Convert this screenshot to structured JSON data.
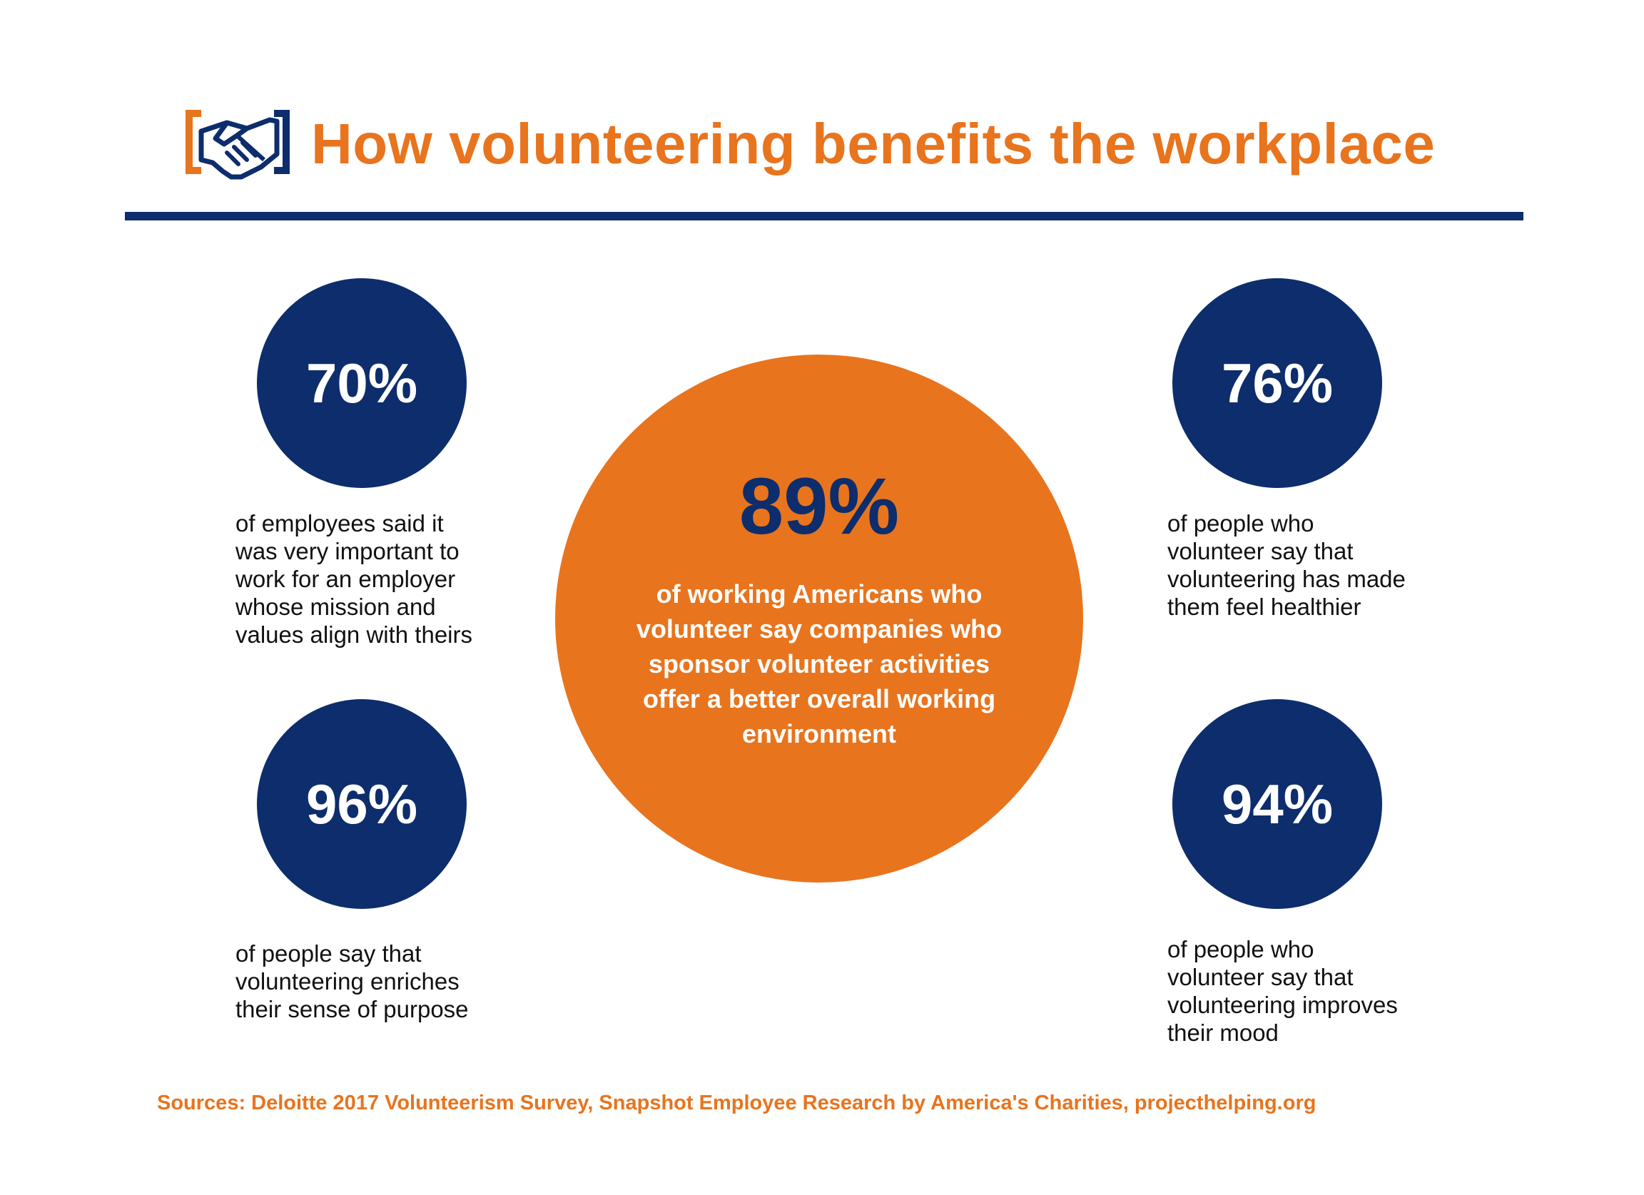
{
  "header": {
    "title": "How volunteering benefits the workplace",
    "icon": "handshake-icon"
  },
  "colors": {
    "accent": "#E8741E",
    "navy": "#0D2D6C"
  },
  "stats": {
    "top_left": {
      "value": "70%",
      "text": "of employees said it\nwas very important to\nwork for an employer\nwhose mission and\nvalues align with theirs"
    },
    "bottom_left": {
      "value": "96%",
      "text": "of people say that\nvolunteering enriches\ntheir sense of purpose"
    },
    "center": {
      "value": "89%",
      "text": "of working Americans who volunteer say companies who sponsor volunteer activities offer a better overall working environment"
    },
    "top_right": {
      "value": "76%",
      "text": "of people who\nvolunteer say that\nvolunteering has made\nthem feel healthier"
    },
    "bottom_right": {
      "value": "94%",
      "text": "of people who\nvolunteer say that\nvolunteering improves\ntheir mood"
    }
  },
  "footer": {
    "sources": "Sources: Deloitte 2017 Volunteerism Survey, Snapshot Employee Research by America's Charities, projecthelping.org"
  }
}
